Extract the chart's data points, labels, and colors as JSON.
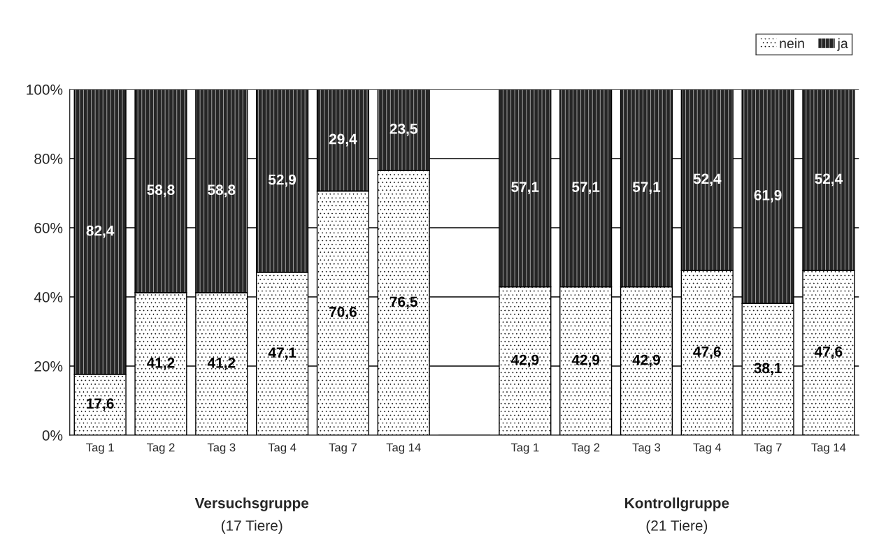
{
  "chart_data": {
    "type": "bar",
    "stacked": true,
    "categories": [
      "Tag 1",
      "Tag 2",
      "Tag 3",
      "Tag 4",
      "Tag 7",
      "Tag 14",
      null,
      "Tag 1",
      "Tag 2",
      "Tag 3",
      "Tag 4",
      "Tag 7",
      "Tag 14"
    ],
    "series": [
      {
        "name": "nein",
        "color": "#ffffff",
        "values": [
          17.6,
          41.2,
          41.2,
          47.1,
          70.6,
          76.5,
          null,
          42.9,
          42.9,
          42.9,
          47.6,
          38.1,
          47.6
        ],
        "value_labels": [
          "17,6",
          "41,2",
          "41,2",
          "47,1",
          "70,6",
          "76,5",
          null,
          "42,9",
          "42,9",
          "42,9",
          "47,6",
          "38,1",
          "47,6"
        ]
      },
      {
        "name": "ja",
        "color": "#262626",
        "values": [
          82.4,
          58.8,
          58.8,
          52.9,
          29.4,
          23.5,
          null,
          57.1,
          57.1,
          57.1,
          52.4,
          61.9,
          52.4
        ],
        "value_labels": [
          "82,4",
          "58,8",
          "58,8",
          "52,9",
          "29,4",
          "23,5",
          null,
          "57,1",
          "57,1",
          "57,1",
          "52,4",
          "61,9",
          "52,4"
        ]
      }
    ],
    "ylim": [
      0,
      100
    ],
    "yticks": [
      {
        "value": 0,
        "label": "0%"
      },
      {
        "value": 20,
        "label": "20%"
      },
      {
        "value": 40,
        "label": "40%"
      },
      {
        "value": 60,
        "label": "60%"
      },
      {
        "value": 80,
        "label": "80%"
      },
      {
        "value": 100,
        "label": "100%"
      }
    ],
    "grid": "y",
    "legend": "top right",
    "annotations": [
      "Versuchsgruppe",
      "(17 Tiere)",
      "Kontrollgruppe",
      "(21 Tiere)"
    ]
  }
}
